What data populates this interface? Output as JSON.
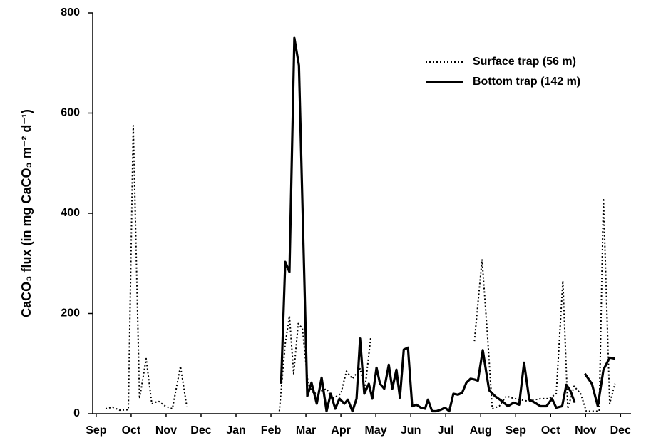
{
  "chart_data": {
    "type": "line",
    "y_label": "CaCO₃ flux (in mg CaCO₃ m⁻² d⁻¹)",
    "xlim": [
      -0.1,
      15.3
    ],
    "xticks": [
      {
        "value": 0,
        "label": "Sep"
      },
      {
        "value": 1,
        "label": "Oct"
      },
      {
        "value": 2,
        "label": "Nov"
      },
      {
        "value": 3,
        "label": "Dec"
      },
      {
        "value": 4,
        "label": "Jan"
      },
      {
        "value": 5,
        "label": "Feb"
      },
      {
        "value": 6,
        "label": "Mar"
      },
      {
        "value": 7,
        "label": "Apr"
      },
      {
        "value": 8,
        "label": "May"
      },
      {
        "value": 9,
        "label": "Jun"
      },
      {
        "value": 10,
        "label": "Jul"
      },
      {
        "value": 11,
        "label": "Aug"
      },
      {
        "value": 12,
        "label": "Sep"
      },
      {
        "value": 13,
        "label": "Oct"
      },
      {
        "value": 14,
        "label": "Nov"
      },
      {
        "value": 15,
        "label": "Dec"
      }
    ],
    "ylim": [
      0,
      800
    ],
    "yticks": [
      0,
      200,
      400,
      600,
      800
    ],
    "legend": "top-right",
    "series": [
      {
        "name": "Surface trap (56 m)",
        "color": "#000000",
        "dash": "dotted",
        "x": [
          0.27,
          0.47,
          0.67,
          0.92,
          1.06,
          1.24,
          1.43,
          1.59,
          1.78,
          1.98,
          2.18,
          2.41,
          2.59,
          null,
          5.24,
          5.41,
          5.53,
          5.65,
          5.78,
          5.9,
          6.06,
          6.22,
          6.43,
          6.59,
          6.76,
          7.0,
          7.16,
          7.33,
          7.55,
          7.69,
          7.86,
          null,
          10.82,
          11.04,
          11.2,
          11.33,
          11.53,
          11.73,
          11.98,
          12.35,
          12.71,
          12.96,
          13.16,
          13.35,
          13.49,
          13.67,
          13.86,
          14.02,
          14.22,
          14.39,
          14.51,
          14.69,
          14.84
        ],
        "values": [
          10,
          13,
          7,
          8,
          575,
          30,
          110,
          20,
          25,
          15,
          10,
          95,
          15,
          null,
          5,
          140,
          195,
          80,
          180,
          170,
          60,
          40,
          45,
          50,
          30,
          40,
          85,
          70,
          90,
          50,
          155,
          null,
          145,
          308,
          150,
          10,
          15,
          35,
          30,
          25,
          30,
          30,
          40,
          265,
          10,
          55,
          40,
          5,
          5,
          5,
          430,
          20,
          60
        ]
      },
      {
        "name": "Bottom trap (142 m)",
        "color": "#000000",
        "dash": "solid",
        "x": [
          5.29,
          5.41,
          5.53,
          5.67,
          5.8,
          6.04,
          6.16,
          6.31,
          6.45,
          6.59,
          6.71,
          6.84,
          6.96,
          7.1,
          7.2,
          7.33,
          7.45,
          7.55,
          7.67,
          7.8,
          7.9,
          8.02,
          8.12,
          8.24,
          8.37,
          8.47,
          8.59,
          8.69,
          8.8,
          8.92,
          9.04,
          9.16,
          9.29,
          9.41,
          9.49,
          9.61,
          9.73,
          9.86,
          9.98,
          10.1,
          10.22,
          10.35,
          10.47,
          10.59,
          10.71,
          10.84,
          10.92,
          11.06,
          11.24,
          11.41,
          11.61,
          11.78,
          11.94,
          12.1,
          12.24,
          12.39,
          12.55,
          12.71,
          12.88,
          13.04,
          13.16,
          13.33,
          13.45,
          13.57,
          13.69,
          null,
          13.98,
          14.18,
          14.35,
          14.51,
          14.69,
          14.84
        ],
        "values": [
          60,
          303,
          283,
          750,
          695,
          35,
          62,
          20,
          72,
          5,
          40,
          10,
          30,
          20,
          28,
          5,
          30,
          150,
          40,
          60,
          30,
          92,
          60,
          50,
          98,
          50,
          88,
          32,
          128,
          132,
          15,
          18,
          12,
          10,
          28,
          5,
          5,
          8,
          12,
          5,
          40,
          38,
          42,
          62,
          70,
          68,
          66,
          127,
          47,
          35,
          25,
          15,
          22,
          18,
          102,
          28,
          22,
          15,
          15,
          30,
          12,
          15,
          58,
          45,
          22,
          null,
          80,
          60,
          15,
          88,
          112,
          110
        ]
      }
    ]
  }
}
